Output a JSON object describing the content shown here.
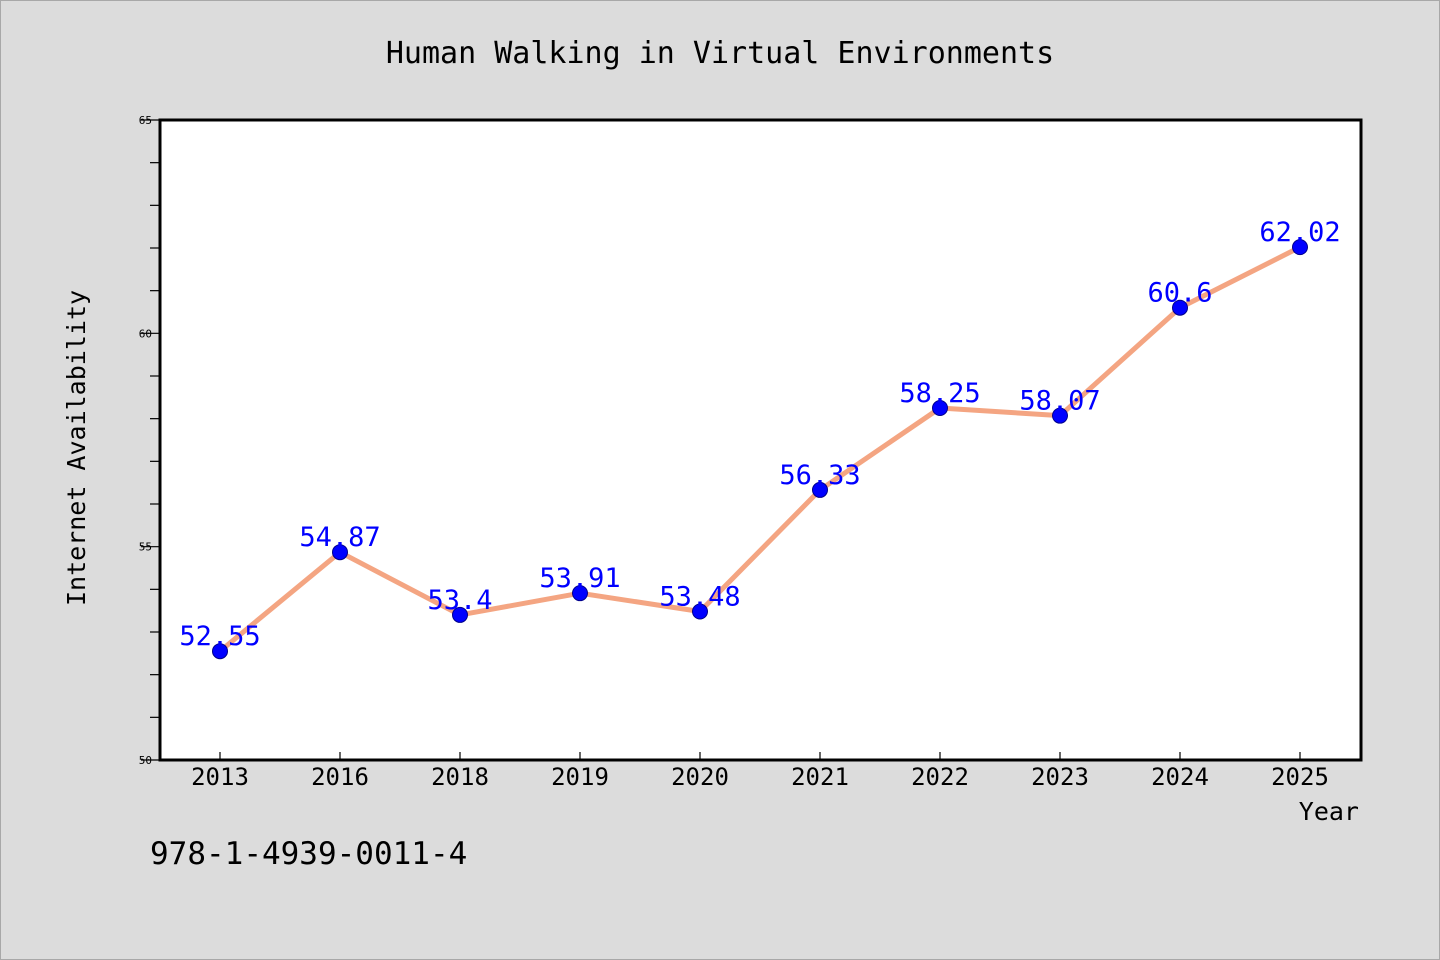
{
  "chart_data": {
    "type": "line",
    "title": "Human Walking in Virtual Environments",
    "xlabel": "Year",
    "ylabel": "Internet Availability",
    "categories": [
      "2013",
      "2016",
      "2018",
      "2019",
      "2020",
      "2021",
      "2022",
      "2023",
      "2024",
      "2025"
    ],
    "values": [
      52.55,
      54.87,
      53.4,
      53.91,
      53.48,
      56.33,
      58.25,
      58.07,
      60.6,
      62.02
    ],
    "data_labels": [
      "52.55",
      "54.87",
      "53.4",
      "53.91",
      "53.48",
      "56.33",
      "58.25",
      "58.07",
      "60.6",
      "62.02"
    ],
    "ylim": [
      50,
      65
    ],
    "yticks": [
      "50",
      "55",
      "60",
      "65"
    ],
    "grid": false,
    "colors": {
      "line": "#f4a582",
      "marker": "#0000ff",
      "data_label": "#0000ff",
      "background": "#dcdcdc",
      "plot_background": "#ffffff"
    }
  },
  "annotation": "978-1-4939-0011-4"
}
